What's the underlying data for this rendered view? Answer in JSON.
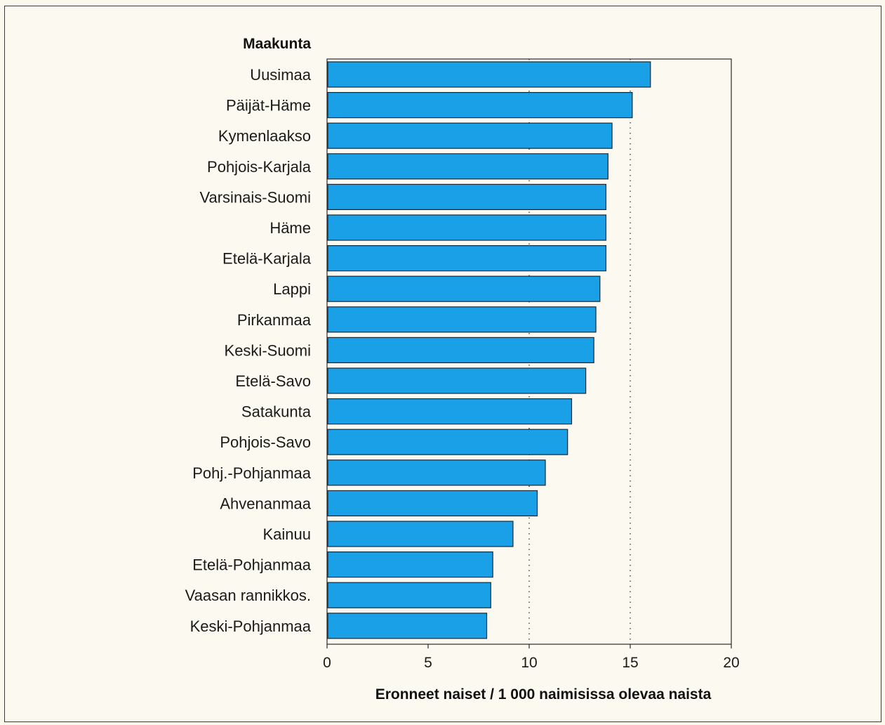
{
  "chart_data": {
    "type": "bar",
    "orientation": "horizontal",
    "category_axis_title": "Maakunta",
    "xlabel": "Eronneet naiset / 1 000 naimisissa olevaa naista",
    "xlim": [
      0,
      20
    ],
    "xticks": [
      0,
      5,
      10,
      15,
      20
    ],
    "gridlines": [
      10,
      15
    ],
    "grid": "dotted vertical at 10 and 15",
    "legend": "none",
    "bar_color": "#1aa0e6",
    "categories": [
      "Uusimaa",
      "Päijät-Häme",
      "Kymenlaakso",
      "Pohjois-Karjala",
      "Varsinais-Suomi",
      "Häme",
      "Etelä-Karjala",
      "Lappi",
      "Pirkanmaa",
      "Keski-Suomi",
      "Etelä-Savo",
      "Satakunta",
      "Pohjois-Savo",
      "Pohj.-Pohjanmaa",
      "Ahvenanmaa",
      "Kainuu",
      "Etelä-Pohjanmaa",
      "Vaasan rannikkos.",
      "Keski-Pohjanmaa"
    ],
    "values": [
      16.0,
      15.1,
      14.1,
      13.9,
      13.8,
      13.8,
      13.8,
      13.5,
      13.3,
      13.2,
      12.8,
      12.1,
      11.9,
      10.8,
      10.4,
      9.2,
      8.2,
      8.1,
      7.9
    ]
  }
}
